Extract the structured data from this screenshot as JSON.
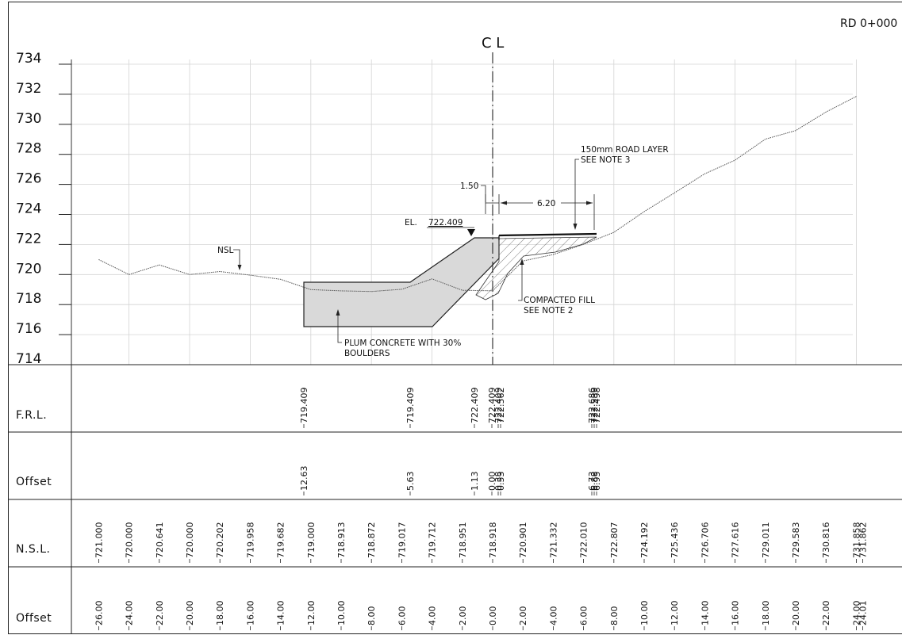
{
  "drawing": {
    "chainage": "RD 0+000",
    "centerline_label": "C L",
    "elevation_axis": {
      "labels": [
        "734",
        "732",
        "730",
        "728",
        "726",
        "724",
        "722",
        "720",
        "718",
        "716",
        "714"
      ]
    },
    "annotations": {
      "nsl": "NSL",
      "road_layer": [
        "150mm ROAD LAYER",
        "SEE NOTE 3"
      ],
      "dim_left": "1.50",
      "dim_right": "6.20",
      "el_prefix": "EL.",
      "el_value": "722.409",
      "compacted_fill": [
        "COMPACTED FILL",
        "SEE NOTE 2"
      ],
      "plum_concrete": [
        "PLUM CONCRETE WITH 30%",
        "BOULDERS"
      ]
    },
    "ground_profile": {
      "offsets": [
        -26.0,
        -24.0,
        -22.0,
        -20.0,
        -18.0,
        -16.0,
        -14.0,
        -12.0,
        -10.0,
        -8.0,
        -6.0,
        -4.0,
        -2.0,
        0.0,
        2.0,
        4.0,
        6.0,
        8.0,
        10.0,
        12.0,
        14.0,
        16.0,
        18.0,
        20.0,
        22.0,
        24.0,
        24.01
      ],
      "levels": [
        721.0,
        720.0,
        720.641,
        720.0,
        720.202,
        719.958,
        719.682,
        719.0,
        718.913,
        718.872,
        719.017,
        719.712,
        718.951,
        718.918,
        720.901,
        721.332,
        722.01,
        722.807,
        724.192,
        725.436,
        726.706,
        727.616,
        729.011,
        729.583,
        730.816,
        731.858,
        731.862
      ]
    }
  },
  "table": {
    "frl": {
      "label": "F.R.L.",
      "values": [
        "719.409",
        "719.409",
        "722.409",
        "722.409",
        "722.409",
        "722.562",
        "722.686",
        "722.539",
        "722.498"
      ]
    },
    "design_offset": {
      "label": "Offset",
      "values": [
        "12.63",
        "5.63",
        "1.13",
        "0.00",
        "0.38",
        "0.53",
        "6.73",
        "6.88",
        "6.95"
      ]
    },
    "nsl": {
      "label": "N.S.L.",
      "values": [
        "721.000",
        "720.000",
        "720.641",
        "720.000",
        "720.202",
        "719.958",
        "719.682",
        "719.000",
        "718.913",
        "718.872",
        "719.017",
        "719.712",
        "718.951",
        "718.918",
        "720.901",
        "721.332",
        "722.010",
        "722.807",
        "724.192",
        "725.436",
        "726.706",
        "727.616",
        "729.011",
        "729.583",
        "730.816",
        "731.858",
        "731.862"
      ]
    },
    "ground_offset": {
      "label": "Offset",
      "values": [
        "26.00",
        "24.00",
        "22.00",
        "20.00",
        "18.00",
        "16.00",
        "14.00",
        "12.00",
        "10.00",
        "8.00",
        "6.00",
        "4.00",
        "2.00",
        "0.00",
        "2.00",
        "4.00",
        "6.00",
        "8.00",
        "10.00",
        "12.00",
        "14.00",
        "16.00",
        "18.00",
        "20.00",
        "22.00",
        "24.00",
        "24.01"
      ]
    }
  }
}
